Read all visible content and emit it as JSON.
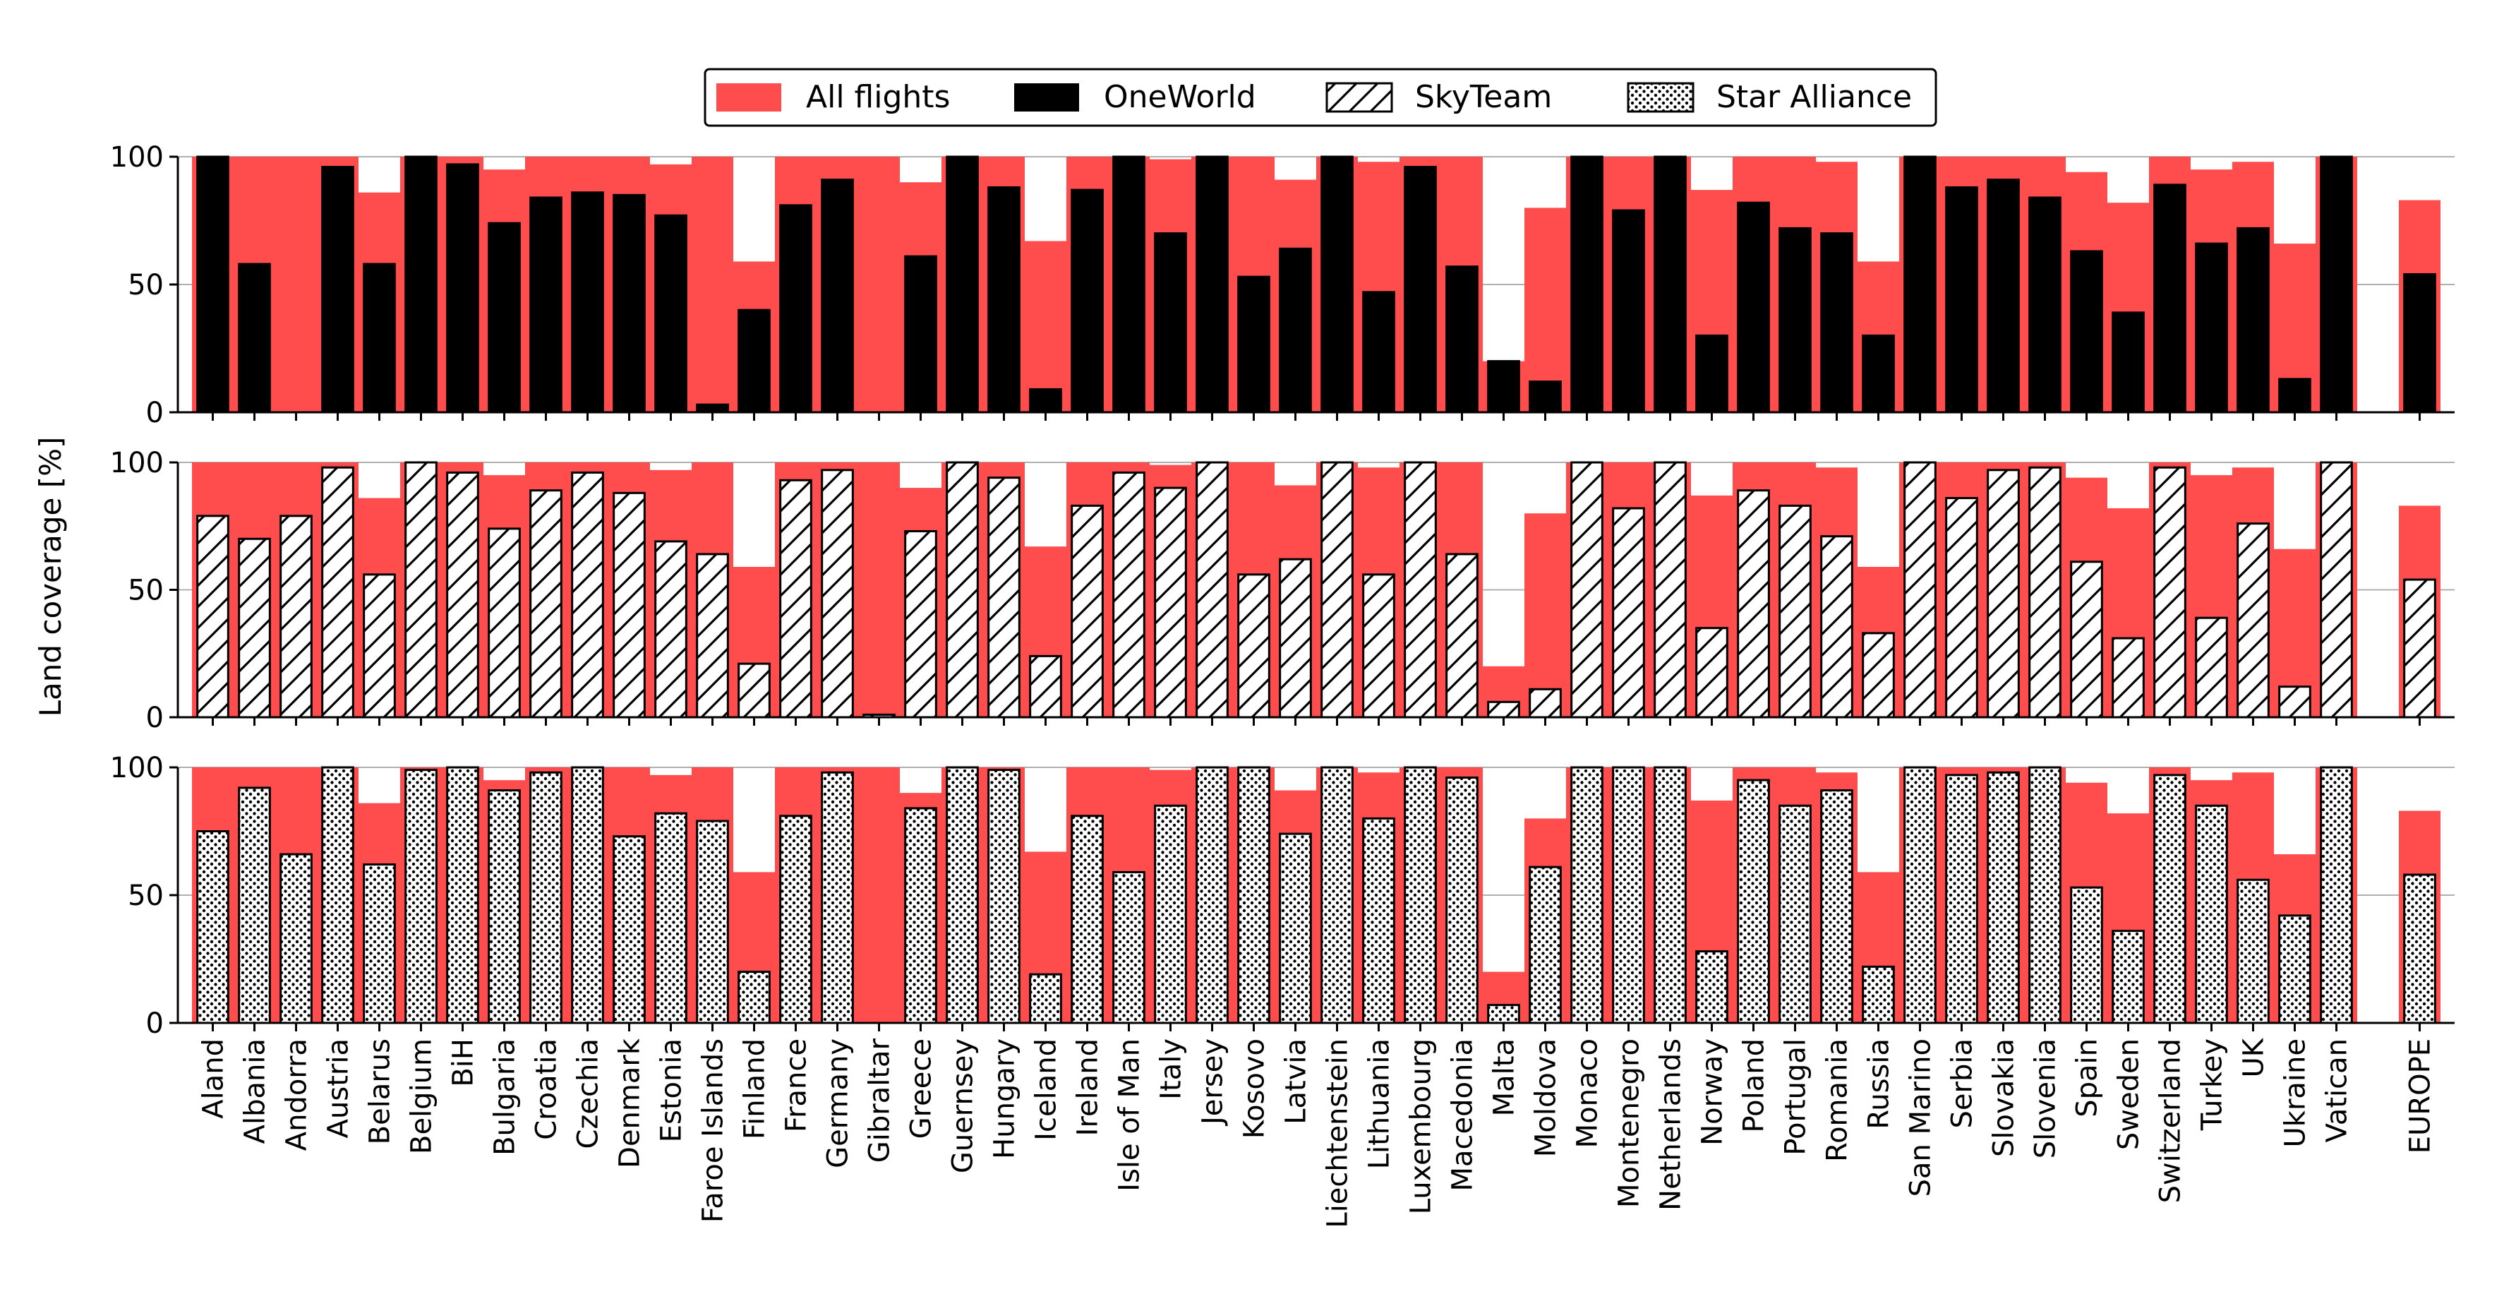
{
  "chart_data": {
    "type": "bar",
    "ylabel": "Land coverage [%]",
    "ylim": [
      0,
      100
    ],
    "yticks": [
      0,
      50,
      100
    ],
    "grid": "horizontal",
    "legend_position": "top-center",
    "legend": [
      {
        "name": "All flights",
        "color": "#ff4d4d",
        "pattern": "solid"
      },
      {
        "name": "OneWorld",
        "color": "#000000",
        "pattern": "solid"
      },
      {
        "name": "SkyTeam",
        "color": "#ffffff",
        "pattern": "diagonal-hatch"
      },
      {
        "name": "Star Alliance",
        "color": "#ffffff",
        "pattern": "dots"
      }
    ],
    "categories": [
      "Aland",
      "Albania",
      "Andorra",
      "Austria",
      "Belarus",
      "Belgium",
      "BiH",
      "Bulgaria",
      "Croatia",
      "Czechia",
      "Denmark",
      "Estonia",
      "Faroe Islands",
      "Finland",
      "France",
      "Germany",
      "Gibraltar",
      "Greece",
      "Guernsey",
      "Hungary",
      "Iceland",
      "Ireland",
      "Isle of Man",
      "Italy",
      "Jersey",
      "Kosovo",
      "Latvia",
      "Liechtenstein",
      "Lithuania",
      "Luxembourg",
      "Macedonia",
      "Malta",
      "Moldova",
      "Monaco",
      "Montenegro",
      "Netherlands",
      "Norway",
      "Poland",
      "Portugal",
      "Romania",
      "Russia",
      "San Marino",
      "Serbia",
      "Slovakia",
      "Slovenia",
      "Spain",
      "Sweden",
      "Switzerland",
      "Turkey",
      "UK",
      "Ukraine",
      "Vatican",
      "EUROPE"
    ],
    "all_flights": [
      100,
      100,
      100,
      100,
      86,
      100,
      100,
      95,
      100,
      100,
      100,
      97,
      100,
      59,
      100,
      100,
      100,
      90,
      100,
      100,
      67,
      100,
      100,
      99,
      100,
      100,
      91,
      100,
      98,
      100,
      100,
      20,
      80,
      100,
      100,
      100,
      87,
      100,
      100,
      98,
      59,
      100,
      100,
      100,
      100,
      94,
      82,
      100,
      95,
      98,
      66,
      100,
      83
    ],
    "series": [
      {
        "name": "OneWorld",
        "values": [
          100,
          58,
          0,
          96,
          58,
          100,
          97,
          74,
          84,
          86,
          85,
          77,
          3,
          40,
          81,
          91,
          0,
          61,
          100,
          88,
          9,
          87,
          100,
          70,
          100,
          53,
          64,
          100,
          47,
          96,
          57,
          20,
          12,
          100,
          79,
          100,
          30,
          82,
          72,
          70,
          30,
          100,
          88,
          91,
          84,
          63,
          39,
          89,
          66,
          72,
          13,
          100,
          54
        ]
      },
      {
        "name": "SkyTeam",
        "values": [
          79,
          70,
          79,
          98,
          56,
          100,
          96,
          74,
          89,
          96,
          88,
          69,
          64,
          21,
          93,
          97,
          1,
          73,
          100,
          94,
          24,
          83,
          96,
          90,
          100,
          56,
          62,
          100,
          56,
          100,
          64,
          6,
          11,
          100,
          82,
          100,
          35,
          89,
          83,
          71,
          33,
          100,
          86,
          97,
          98,
          61,
          31,
          98,
          39,
          76,
          12,
          100,
          54
        ]
      },
      {
        "name": "Star Alliance",
        "values": [
          75,
          92,
          66,
          100,
          62,
          99,
          100,
          91,
          98,
          100,
          73,
          82,
          79,
          20,
          81,
          98,
          0,
          84,
          100,
          99,
          19,
          81,
          59,
          85,
          100,
          100,
          74,
          100,
          80,
          100,
          96,
          7,
          61,
          100,
          100,
          100,
          28,
          95,
          85,
          91,
          22,
          100,
          97,
          98,
          100,
          53,
          36,
          97,
          85,
          56,
          42,
          100,
          58
        ]
      }
    ]
  }
}
